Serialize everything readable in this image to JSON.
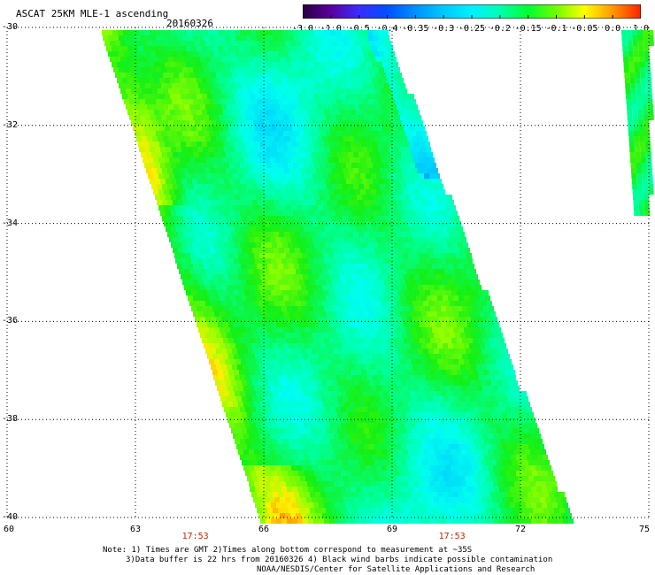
{
  "header": {
    "title": "ASCAT 25KM MLE-1 ascending",
    "date": "20160326"
  },
  "colorbar": {
    "labels": [
      "-3.0",
      "-1.0",
      "-0.5",
      "-0.4",
      "-0.35",
      "-0.3",
      "-0.25",
      "-0.2",
      "-0.15",
      "-0.1",
      "-0.05",
      "0.0",
      "1.0"
    ],
    "colors": [
      "#2a0040",
      "#5a00a0",
      "#3a2cff",
      "#0050ff",
      "#0090ff",
      "#00c8ff",
      "#00f0ff",
      "#00ffb0",
      "#00ff30",
      "#70ff00",
      "#ffff00",
      "#ff9900",
      "#ff2000"
    ]
  },
  "map": {
    "lat_labels": [
      "-30",
      "-32",
      "-34",
      "-36",
      "-38",
      "-40"
    ],
    "lat_values": [
      -30,
      -32,
      -34,
      -36,
      -38,
      -40
    ],
    "lon_labels": [
      "60",
      "63",
      "66",
      "69",
      "72",
      "75"
    ],
    "lon_values": [
      60,
      63,
      66,
      69,
      72,
      75
    ],
    "time_labels": [
      "17:53",
      "17:53"
    ],
    "time_lons": [
      64.4,
      70.4
    ],
    "lat_range": [
      -40,
      -30
    ],
    "lon_range": [
      60,
      75
    ],
    "grid": true
  },
  "notes": {
    "line1": "Note: 1) Times are GMT 2)Times along bottom correspond to measurement at ~35S",
    "line2": "3)Data buffer is 22 hrs from 20160326 4) Black wind barbs indicate possible contamination",
    "line3": "NOAA/NESDIS/Center for Satellite Applications and Research"
  }
}
